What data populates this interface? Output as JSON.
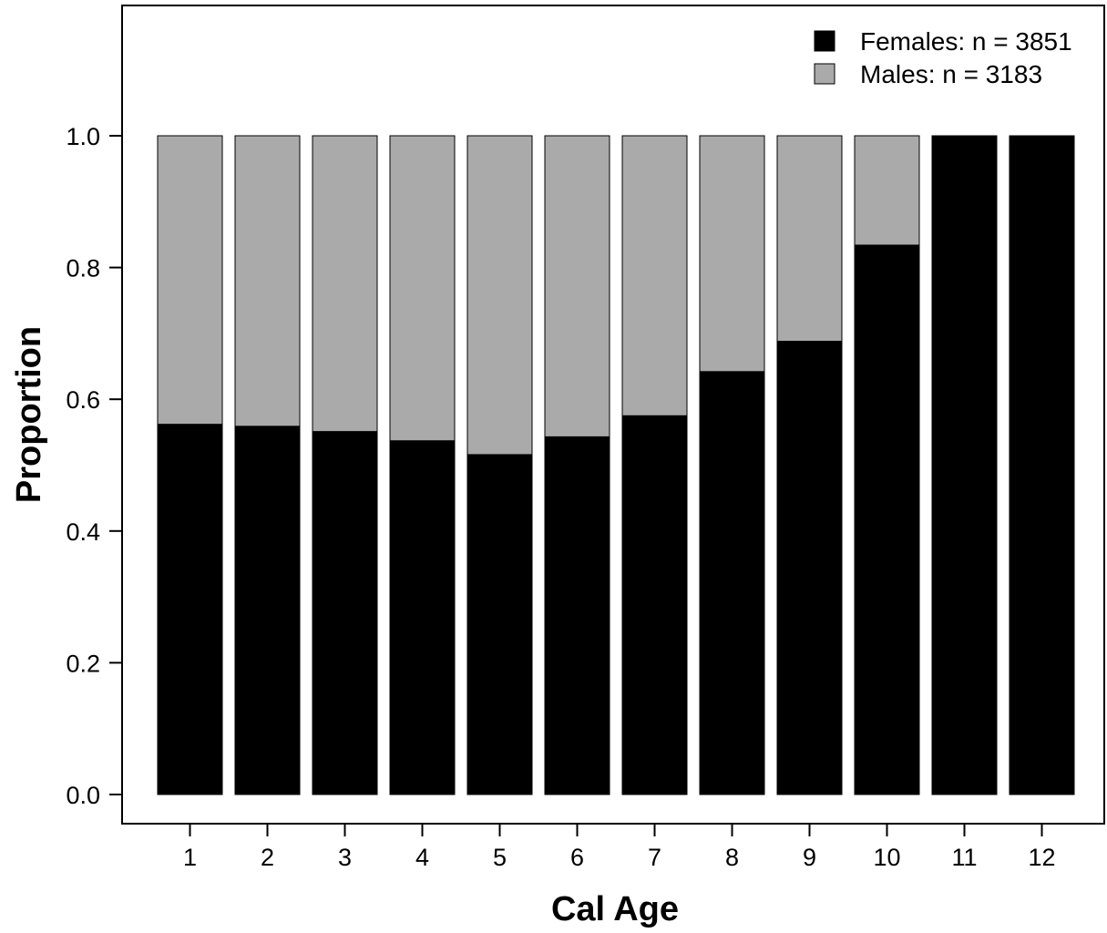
{
  "chart_data": {
    "type": "bar",
    "stacked": true,
    "title": "",
    "xlabel": "Cal Age",
    "ylabel": "Proportion",
    "ylim": [
      0,
      1.0
    ],
    "y_ticks": [
      "0.0",
      "0.2",
      "0.4",
      "0.6",
      "0.8",
      "1.0"
    ],
    "categories": [
      "1",
      "2",
      "3",
      "4",
      "5",
      "6",
      "7",
      "8",
      "9",
      "10",
      "11",
      "12"
    ],
    "series": [
      {
        "name": "Females: n = 3851",
        "color": "#000000",
        "values": [
          0.562,
          0.559,
          0.551,
          0.537,
          0.516,
          0.543,
          0.575,
          0.642,
          0.688,
          0.834,
          1.0,
          1.0
        ]
      },
      {
        "name": "Males: n = 3183",
        "color": "#aaaaaa",
        "values": [
          0.438,
          0.441,
          0.449,
          0.463,
          0.484,
          0.457,
          0.425,
          0.358,
          0.312,
          0.166,
          0.0,
          0.0
        ]
      }
    ],
    "legend_position": "top-right",
    "grid": false
  }
}
